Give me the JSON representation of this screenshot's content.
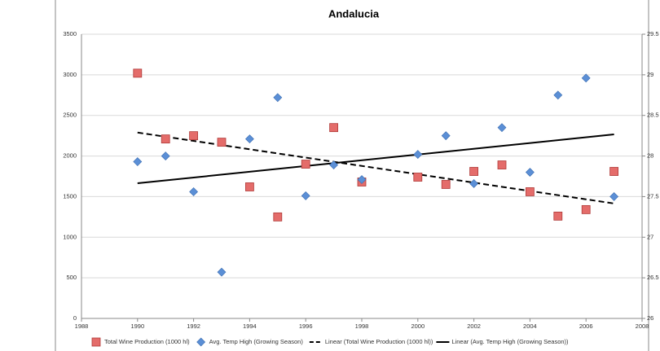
{
  "chart_data": {
    "type": "scatter",
    "title": "Andalucia",
    "x": [
      1990,
      1991,
      1992,
      1993,
      1994,
      1995,
      1996,
      1997,
      1998,
      2000,
      2001,
      2002,
      2003,
      2004,
      2005,
      2006,
      2007
    ],
    "series": [
      {
        "name": "Total Wine Production (1000 hl)",
        "color": "#e46c6a",
        "marker": "square",
        "axis": "y",
        "values": [
          3020,
          2210,
          2250,
          2170,
          1620,
          1250,
          1900,
          2350,
          1680,
          1740,
          1650,
          1810,
          1890,
          1560,
          1260,
          1340,
          1810
        ],
        "trendline": {
          "name": "Linear (Total Wine Production (1000 hl))",
          "dash": true
        }
      },
      {
        "name": "Avg. Temp High (Growing Season)",
        "color": "#5b8fd6",
        "marker": "diamond",
        "axis": "y2",
        "values": [
          27.93,
          28.0,
          27.56,
          26.57,
          28.21,
          28.72,
          27.51,
          27.89,
          27.71,
          28.02,
          28.25,
          27.66,
          28.35,
          27.8,
          28.75,
          28.96,
          27.5
        ],
        "trendline": {
          "name": "Linear (Avg. Temp High (Growing Season))",
          "dash": false
        }
      }
    ],
    "xlim": [
      1988,
      2008
    ],
    "xticks": [
      1988,
      1990,
      1992,
      1994,
      1996,
      1998,
      2000,
      2002,
      2004,
      2006,
      2008
    ],
    "ylim": [
      0,
      3500
    ],
    "yticks": [
      0,
      500,
      1000,
      1500,
      2000,
      2500,
      3000,
      3500
    ],
    "y2lim": [
      26,
      29.5
    ],
    "y2ticks": [
      26,
      26.5,
      27,
      27.5,
      28,
      28.5,
      29,
      29.5
    ],
    "grid": true,
    "legend": "bottom"
  }
}
